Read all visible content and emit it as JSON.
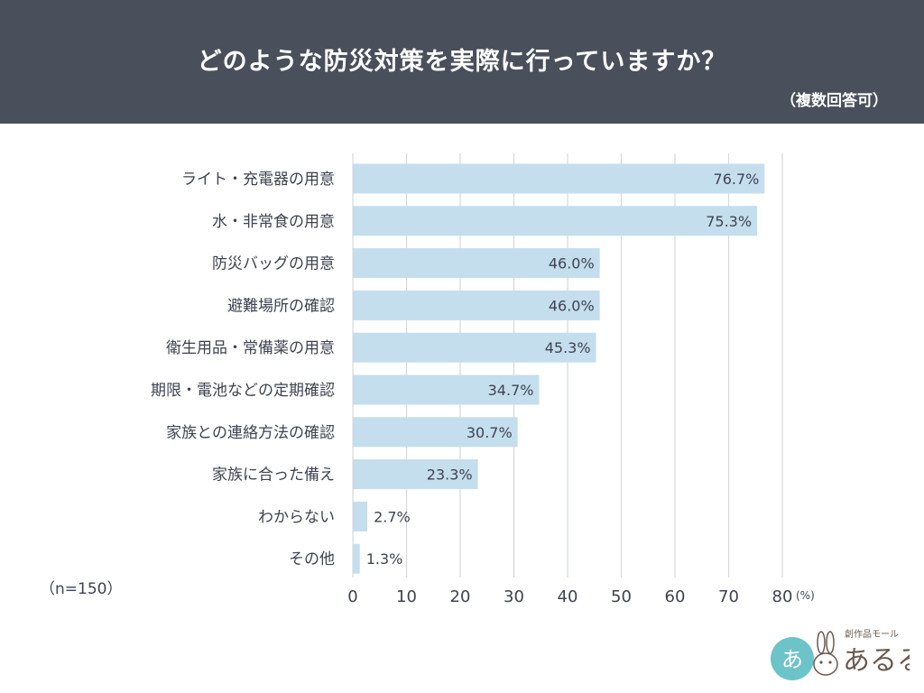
{
  "header": {
    "title": "どのような防災対策を実際に行っていますか？",
    "subtitle": "（複数回答可）"
  },
  "sample_note": "（n=150）",
  "logo": {
    "tagline": "創作品モール",
    "name": "あるる"
  },
  "colors": {
    "header_bg": "#4a4f5c",
    "bar": "#c5deee",
    "grid": "#d6d8dc",
    "text": "#3d4350"
  },
  "chart_data": {
    "type": "bar",
    "orientation": "horizontal",
    "categories": [
      "ライト・充電器の用意",
      "水・非常食の用意",
      "防災バッグの用意",
      "避難場所の確認",
      "衛生用品・常備薬の用意",
      "期限・電池などの定期確認",
      "家族との連絡方法の確認",
      "家族に合った備え",
      "わからない",
      "その他"
    ],
    "values": [
      76.7,
      75.3,
      46.0,
      46.0,
      45.3,
      34.7,
      30.7,
      23.3,
      2.7,
      1.3
    ],
    "value_labels": [
      "76.7%",
      "75.3%",
      "46.0%",
      "46.0%",
      "45.3%",
      "34.7%",
      "30.7%",
      "23.3%",
      "2.7%",
      "1.3%"
    ],
    "xlim": [
      0,
      80
    ],
    "ticks": [
      "0",
      "10",
      "20",
      "30",
      "40",
      "50",
      "60",
      "70",
      "80"
    ],
    "unit_label": "(%)",
    "grid": true
  }
}
